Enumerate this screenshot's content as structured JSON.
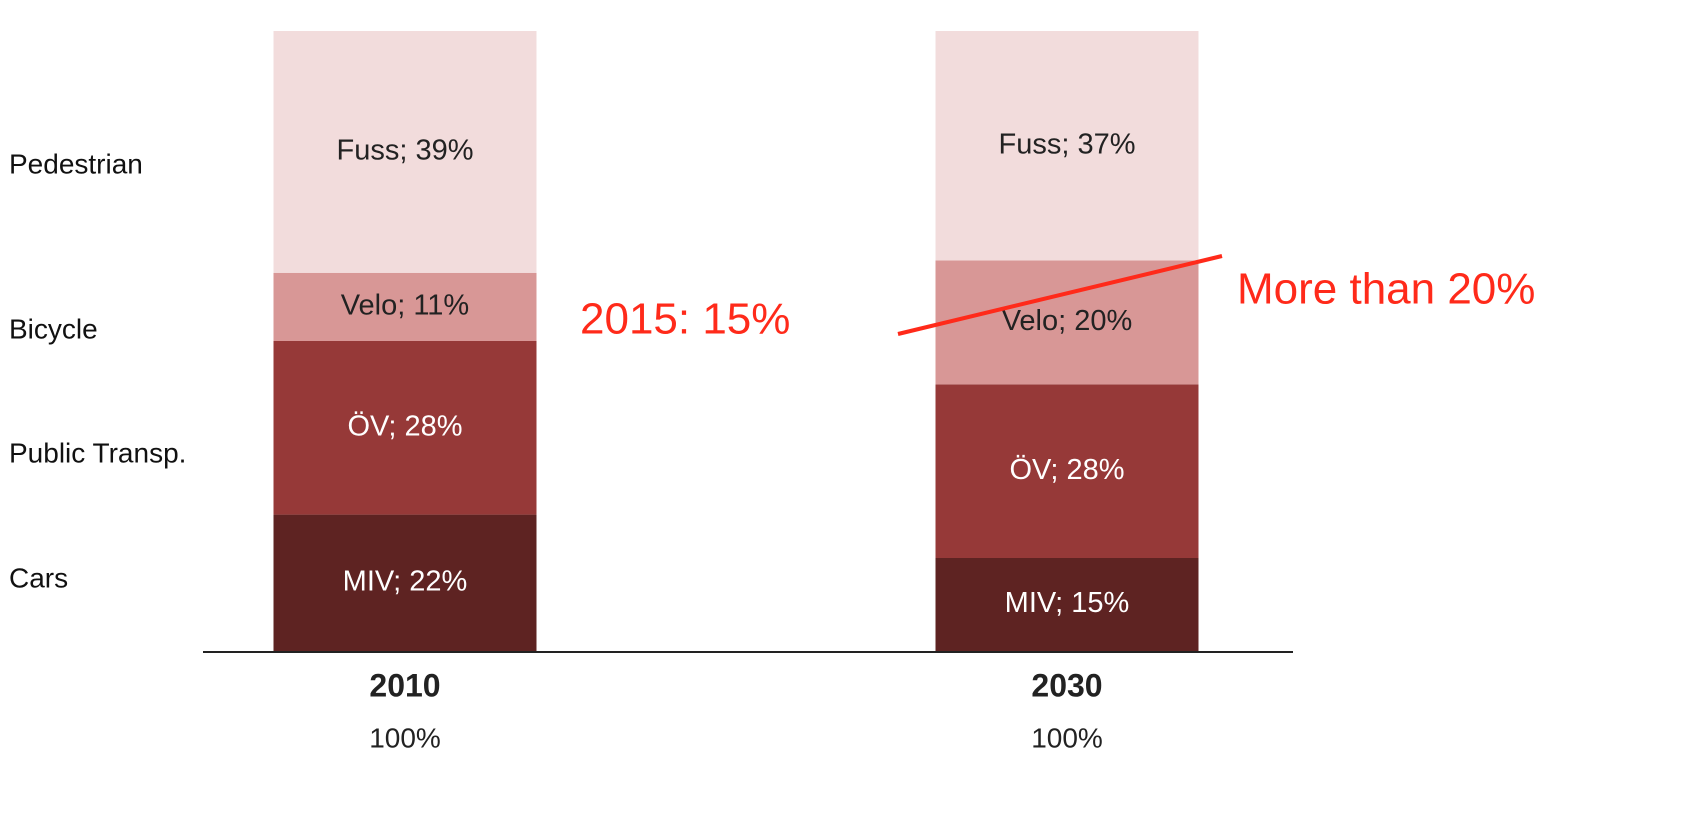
{
  "chart_data": {
    "type": "stacked_bar",
    "categories": [
      "2010",
      "2030"
    ],
    "category_labels": [
      "100%",
      "100%"
    ],
    "ylim": [
      0,
      100
    ],
    "series": [
      {
        "name": "Cars",
        "color": "#5e2322",
        "label_color": "#ffffff",
        "values": [
          22,
          15
        ],
        "value_labels": [
          "MIV; 22%",
          "MIV; 15%"
        ]
      },
      {
        "name": "Public Transp.",
        "color": "#963938",
        "label_color": "#ffffff",
        "values": [
          28,
          28
        ],
        "value_labels": [
          "ÖV; 28%",
          "ÖV; 28%"
        ]
      },
      {
        "name": "Bicycle",
        "color": "#d89796",
        "label_color": "#222222",
        "values": [
          11,
          20
        ],
        "value_labels": [
          "Velo; 11%",
          "Velo; 20%"
        ]
      },
      {
        "name": "Pedestrian",
        "color": "#f2dcdc",
        "label_color": "#222222",
        "values": [
          39,
          37
        ],
        "value_labels": [
          "Fuss; 39%",
          "Fuss; 37%"
        ]
      }
    ],
    "annotations": [
      "2015: 15%",
      "More than 20%"
    ]
  }
}
